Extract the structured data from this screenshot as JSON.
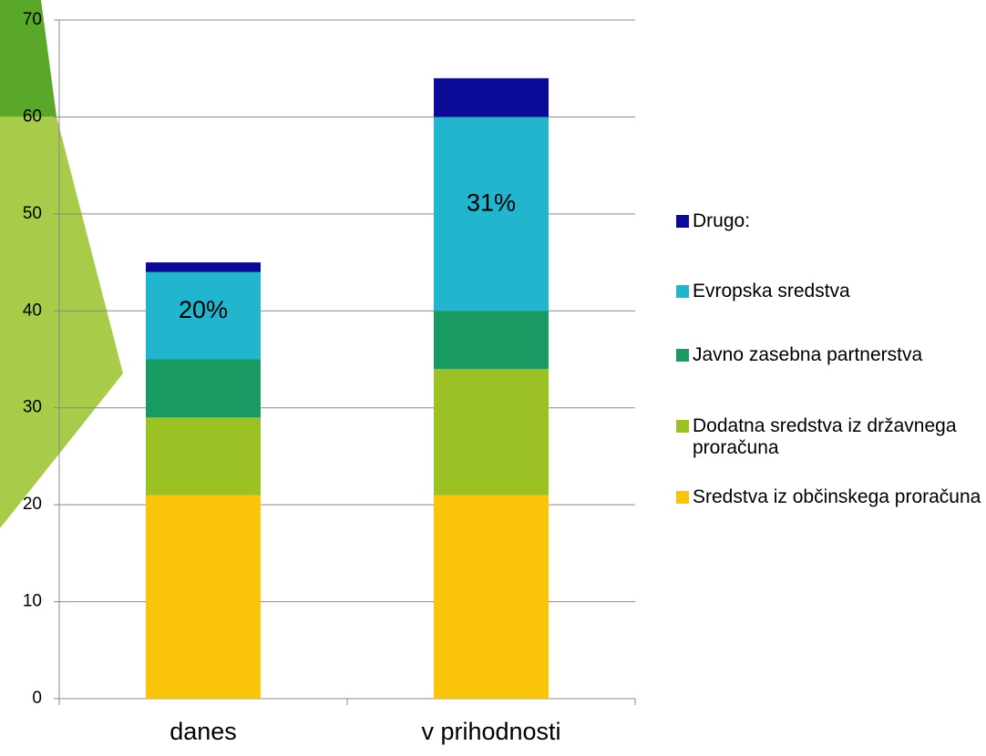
{
  "chart_data": {
    "type": "stacked_bar",
    "categories": [
      "danes",
      "v prihodnosti"
    ],
    "series": [
      {
        "name": "Sredstva iz občinskega proračuna",
        "color": "#fac40a",
        "values": [
          21,
          21
        ]
      },
      {
        "name": "Dodatna sredstva iz državnega proračuna",
        "color": "#9bc125",
        "values": [
          8,
          13
        ]
      },
      {
        "name": "Javno zasebna partnerstva",
        "color": "#199a63",
        "values": [
          6,
          6
        ]
      },
      {
        "name": "Evropska sredstva",
        "color": "#22b5ce",
        "values": [
          9,
          20
        ]
      },
      {
        "name": "Drugo:",
        "color": "#0a0a96",
        "values": [
          1,
          4
        ]
      }
    ],
    "annotations": [
      "20%",
      "31%"
    ],
    "ylim": [
      0,
      70
    ],
    "yticks": [
      0,
      10,
      20,
      30,
      40,
      50,
      60,
      70
    ],
    "grid": true
  }
}
